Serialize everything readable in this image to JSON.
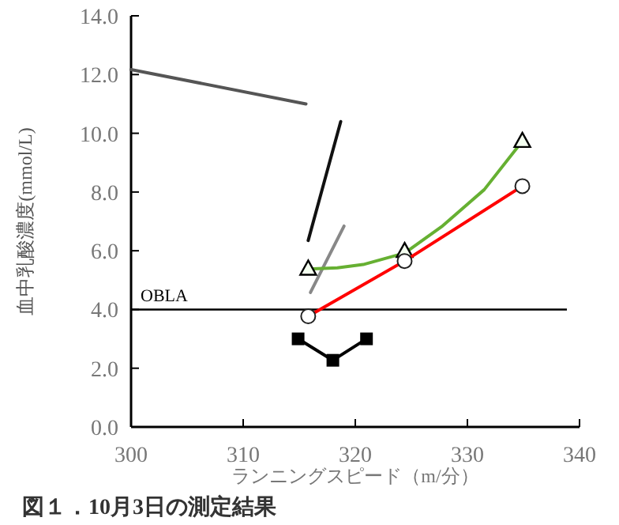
{
  "chart_data": {
    "type": "line",
    "xlabel": "ランニングスピード（m/分）",
    "ylabel": "血中乳酸濃度(mmol/L)",
    "annotations": [
      "図１．10月3日の測定結果"
    ],
    "xlim": [
      300,
      340
    ],
    "xticks": [
      300,
      310,
      320,
      330,
      340
    ],
    "ylim": [
      0,
      14
    ],
    "yticks": [
      {
        "value": 0,
        "label": "0.0"
      },
      {
        "value": 2,
        "label": "2.0"
      },
      {
        "value": 4,
        "label": "4.0"
      },
      {
        "value": 6,
        "label": "6.0"
      },
      {
        "value": 8,
        "label": "8.0"
      },
      {
        "value": 10,
        "label": "10.0"
      },
      {
        "value": 12,
        "label": "12.0"
      },
      {
        "value": 14,
        "label": "14.0"
      }
    ],
    "grid": false,
    "ref_lines": [
      {
        "axis": "y",
        "value": 4.0,
        "label": "OBLA",
        "color": "#000000"
      }
    ],
    "series": [
      {
        "color": "#555555",
        "marker": "none",
        "x": [
          300,
          315.6
        ],
        "values": [
          12.17,
          11.0
        ]
      },
      {
        "color": "#111111",
        "marker": "none",
        "x": [
          315.8,
          318.7
        ],
        "values": [
          6.35,
          10.4
        ]
      },
      {
        "color": "#888888",
        "marker": "none",
        "x": [
          316.0,
          319.0
        ],
        "values": [
          4.58,
          6.84
        ]
      },
      {
        "color": "#66b032",
        "marker": "none",
        "x": [
          315.8,
          318.4,
          320.7,
          324.4,
          327.7,
          331.5,
          334.9
        ],
        "values": [
          5.38,
          5.42,
          5.53,
          5.92,
          6.82,
          8.08,
          9.73
        ]
      },
      {
        "type": "scatter",
        "color": "#000000",
        "marker": "triangle",
        "x": [
          315.8,
          324.4,
          334.9
        ],
        "values": [
          5.4,
          6.0,
          9.75
        ]
      },
      {
        "color": "#ff0000",
        "marker": "circle",
        "x": [
          315.8,
          324.4,
          334.9
        ],
        "values": [
          3.77,
          5.65,
          8.2
        ]
      },
      {
        "color": "#000000",
        "marker": "square",
        "x": [
          314.9,
          318.0,
          321.0
        ],
        "values": [
          3.0,
          2.27,
          3.0
        ]
      }
    ]
  }
}
